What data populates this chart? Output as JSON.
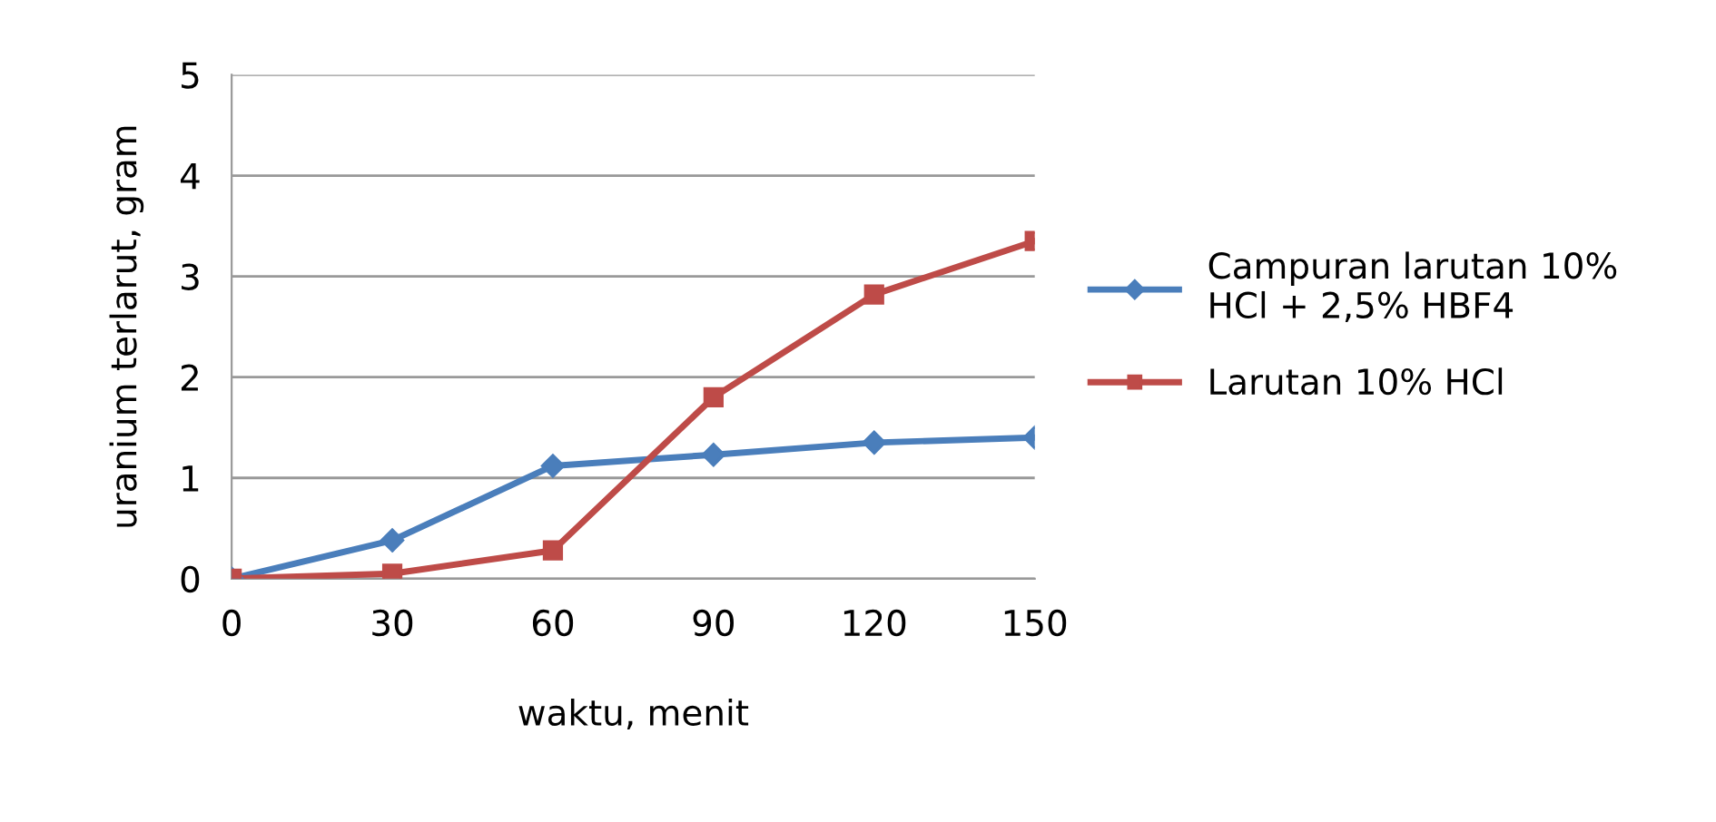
{
  "chart_data": {
    "type": "line",
    "xlabel": "waktu, menit",
    "ylabel": "uranium terlarut, gram",
    "x": [
      0,
      30,
      60,
      90,
      120,
      150
    ],
    "series": [
      {
        "name": "Campuran larutan 10%\nHCl + 2,5% HBF4",
        "color": "#4a7ebb",
        "marker": "diamond",
        "values": [
          0,
          0.38,
          1.12,
          1.23,
          1.35,
          1.4
        ]
      },
      {
        "name": "Larutan 10% HCl",
        "color": "#be4b48",
        "marker": "square",
        "values": [
          0,
          0.05,
          0.28,
          1.8,
          2.82,
          3.35
        ]
      }
    ],
    "xlim": [
      0,
      150
    ],
    "xticks": [
      0,
      30,
      60,
      90,
      120,
      150
    ],
    "ylim": [
      0,
      5
    ],
    "yticks": [
      0,
      1,
      2,
      3,
      4,
      5
    ],
    "grid": "y",
    "legend": "right",
    "line_style": "solid"
  }
}
